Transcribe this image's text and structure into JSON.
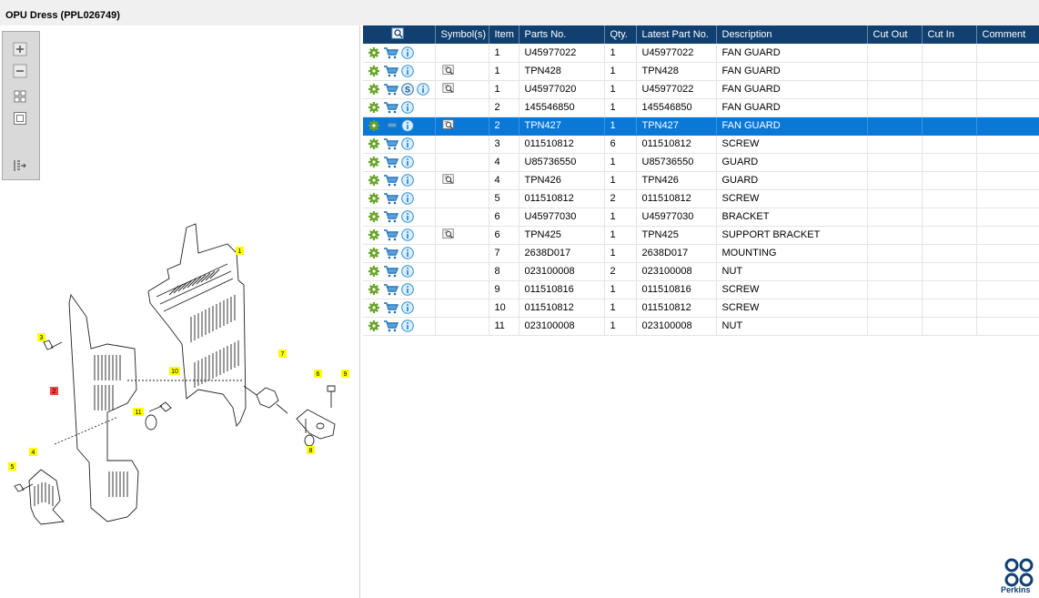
{
  "window": {
    "title": "OPU Dress (PPL026749)"
  },
  "toolbar": {
    "buttons": [
      "zoom-in-icon",
      "zoom-out-icon",
      "fit-all-icon",
      "fit-window-icon",
      "export-icon"
    ]
  },
  "diagram": {
    "callouts": [
      "1",
      "2",
      "3",
      "4",
      "5",
      "6",
      "7",
      "8",
      "9",
      "10",
      "11"
    ]
  },
  "table": {
    "columns": [
      "Symbol(s)",
      "Item",
      "Parts No.",
      "Qty.",
      "Latest Part No.",
      "Description",
      "Cut Out",
      "Cut In",
      "Comment"
    ],
    "rows": [
      {
        "item": "1",
        "part": "U45977022",
        "qty": "1",
        "latest": "U45977022",
        "desc": "FAN GUARD",
        "s": false,
        "sym": false,
        "selected": false
      },
      {
        "item": "1",
        "part": "TPN428",
        "qty": "1",
        "latest": "TPN428",
        "desc": "FAN GUARD",
        "s": false,
        "sym": true,
        "selected": false
      },
      {
        "item": "1",
        "part": "U45977020",
        "qty": "1",
        "latest": "U45977022",
        "desc": "FAN GUARD",
        "s": true,
        "sym": true,
        "selected": false
      },
      {
        "item": "2",
        "part": "145546850",
        "qty": "1",
        "latest": "145546850",
        "desc": "FAN GUARD",
        "s": false,
        "sym": false,
        "selected": false
      },
      {
        "item": "2",
        "part": "TPN427",
        "qty": "1",
        "latest": "TPN427",
        "desc": "FAN GUARD",
        "s": false,
        "sym": true,
        "selected": true
      },
      {
        "item": "3",
        "part": "011510812",
        "qty": "6",
        "latest": "011510812",
        "desc": "SCREW",
        "s": false,
        "sym": false,
        "selected": false
      },
      {
        "item": "4",
        "part": "U85736550",
        "qty": "1",
        "latest": "U85736550",
        "desc": "GUARD",
        "s": false,
        "sym": false,
        "selected": false
      },
      {
        "item": "4",
        "part": "TPN426",
        "qty": "1",
        "latest": "TPN426",
        "desc": "GUARD",
        "s": false,
        "sym": true,
        "selected": false
      },
      {
        "item": "5",
        "part": "011510812",
        "qty": "2",
        "latest": "011510812",
        "desc": "SCREW",
        "s": false,
        "sym": false,
        "selected": false
      },
      {
        "item": "6",
        "part": "U45977030",
        "qty": "1",
        "latest": "U45977030",
        "desc": "BRACKET",
        "s": false,
        "sym": false,
        "selected": false
      },
      {
        "item": "6",
        "part": "TPN425",
        "qty": "1",
        "latest": "TPN425",
        "desc": "SUPPORT BRACKET",
        "s": false,
        "sym": true,
        "selected": false
      },
      {
        "item": "7",
        "part": "2638D017",
        "qty": "1",
        "latest": "2638D017",
        "desc": "MOUNTING",
        "s": false,
        "sym": false,
        "selected": false
      },
      {
        "item": "8",
        "part": "023100008",
        "qty": "2",
        "latest": "023100008",
        "desc": "NUT",
        "s": false,
        "sym": false,
        "selected": false
      },
      {
        "item": "9",
        "part": "011510816",
        "qty": "1",
        "latest": "011510816",
        "desc": "SCREW",
        "s": false,
        "sym": false,
        "selected": false
      },
      {
        "item": "10",
        "part": "011510812",
        "qty": "1",
        "latest": "011510812",
        "desc": "SCREW",
        "s": false,
        "sym": false,
        "selected": false
      },
      {
        "item": "11",
        "part": "023100008",
        "qty": "1",
        "latest": "023100008",
        "desc": "NUT",
        "s": false,
        "sym": false,
        "selected": false
      }
    ]
  },
  "colors": {
    "header": "#103f70",
    "selected": "#0a78d7",
    "gear": "#6aa42a",
    "info": "#2a8fd6"
  },
  "logo": {
    "text": "Perkins"
  }
}
